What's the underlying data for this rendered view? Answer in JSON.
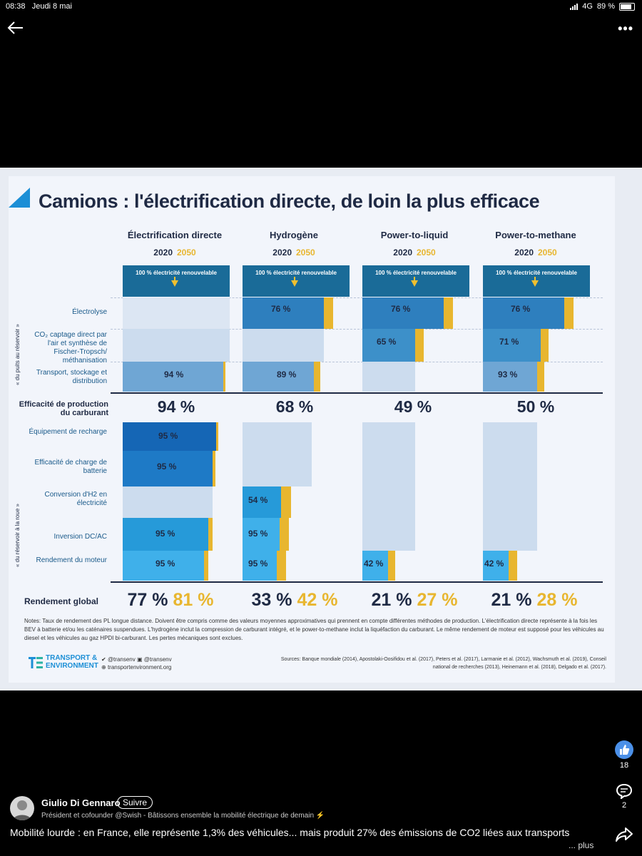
{
  "status_bar": {
    "time": "08:38",
    "date": "Jeudi 8 mai",
    "network": "4G",
    "battery": "89 %"
  },
  "infographic": {
    "title": "Camions : l'électrification directe, de loin la plus efficace",
    "columns": [
      {
        "name": "Électrification directe"
      },
      {
        "name": "Hydrogène"
      },
      {
        "name": "Power-to-liquid"
      },
      {
        "name": "Power-to-methane"
      }
    ],
    "year_2020": "2020",
    "year_2050": "2050",
    "renewable_label": "100 % électricité renouvelable",
    "side_label_top": "« du puits au réservoir »",
    "side_label_bottom": "« du réservoir à la roue »",
    "rows_top": [
      "Électrolyse",
      "CO₂ captage direct par l'air et synthèse de Fischer-Tropsch/ méthanisation",
      "Transport, stockage et distribution"
    ],
    "rows_bottom": [
      "Équipement de recharge",
      "Efficacité de charge de batterie",
      "Conversion d'H2 en électricité",
      "Inversion DC/AC",
      "Rendement du moteur"
    ],
    "values": {
      "electrolyse": [
        "",
        "76 %",
        "76 %",
        "76 %"
      ],
      "synthese": [
        "",
        "",
        "65 %",
        "71 %"
      ],
      "transport": [
        "94 %",
        "89 %",
        "",
        "93 %"
      ],
      "recharge": [
        "95 %",
        "",
        "",
        ""
      ],
      "batterie": [
        "95 %",
        "",
        "",
        ""
      ],
      "conversion": [
        "",
        "54 %",
        "",
        ""
      ],
      "inversion": [
        "95 %",
        "95 %",
        "",
        ""
      ],
      "moteur": [
        "95 %",
        "95 %",
        "42 %",
        "42 %"
      ]
    },
    "production_label": "Efficacité de production du carburant",
    "production": [
      "94 %",
      "68 %",
      "49 %",
      "50 %"
    ],
    "global_label": "Rendement global",
    "global_2020": [
      "77 %",
      "33 %",
      "21 %",
      "21 %"
    ],
    "global_2050": [
      "81 %",
      "42 %",
      "27 %",
      "28 %"
    ],
    "notes": "Notes: Taux de rendement des PL longue distance. Doivent être compris comme des valeurs moyennes approximatives qui prennent en compte différentes méthodes de production. L'électrification directe représente à la fois les BEV à batterie et/ou les caténaires suspendues. L'hydrogène inclut la compression de carburant intégré, et le power-to-methane inclut la liquéfaction du carburant. Le même rendement de moteur est supposé pour les véhicules au diesel et les véhicules au gaz HPDI bi-carburant. Les pertes mécaniques sont exclues.",
    "brand": "TRANSPORT & ENVIRONMENT",
    "social_twitter": "@transenv",
    "social_facebook": "@transenv",
    "website": "transportenvironment.org",
    "sources": "Sources: Banque mondiale (2014), Apostolaki-Oosifidou et al. (2017), Peters et al. (2017), Larmanie et al. (2012), Wachsmuth et al. (2019), Conseil national de recherches (2013), Heinemann et al. (2018), Delgado et al. (2017)."
  },
  "rail": {
    "likes": "18",
    "comments": "2"
  },
  "post": {
    "author": "Giulio Di Gennaro",
    "follow": "Suivre",
    "subtitle": "Président et cofounder @Swish - Bâtissons ensemble la mobilité électrique de demain ⚡",
    "caption": "Mobilité lourde : en France, elle représente 1,3% des véhicules... mais produit 27% des émissions de CO2 liées aux transports",
    "more": "... plus"
  },
  "colors": {
    "accent_blue": "#1c8fd6",
    "gold": "#e8b62f",
    "navy": "#1f2a44"
  }
}
